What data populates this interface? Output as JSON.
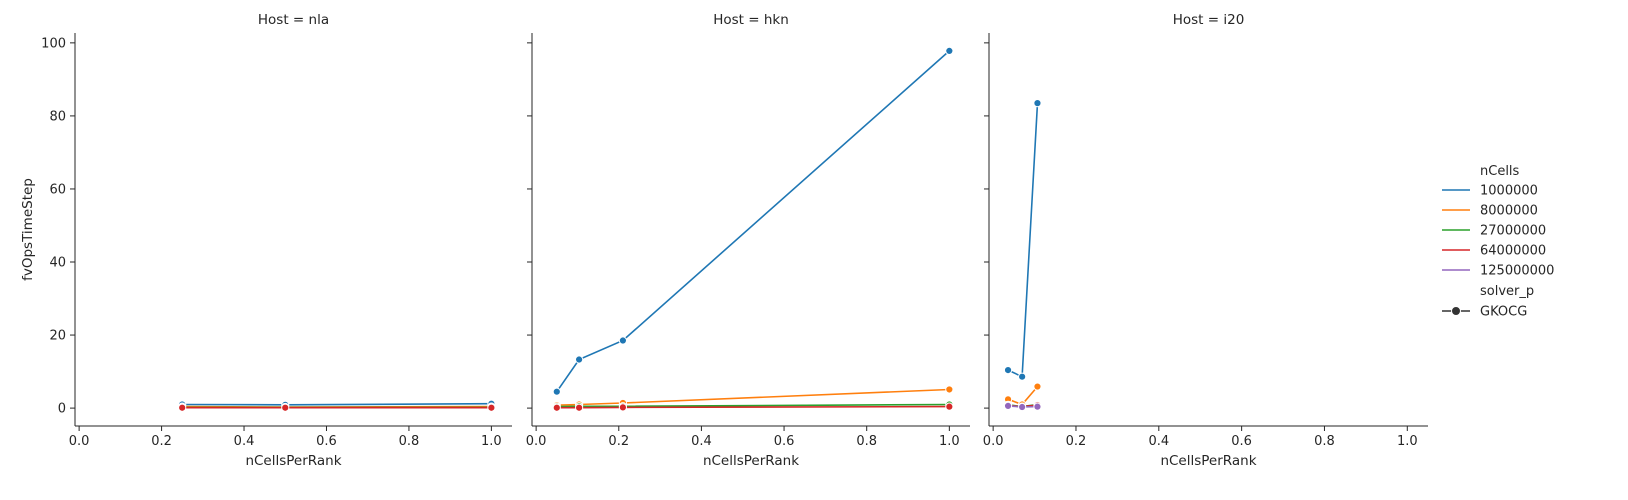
{
  "chart_data": {
    "type": "line",
    "xlabel": "nCellsPerRank",
    "ylabel": "fvOpsTimeStep",
    "xlim": [
      -0.01,
      1.05
    ],
    "ylim": [
      -4.9,
      102.7
    ],
    "xticks": [
      "0.0",
      "0.2",
      "0.4",
      "0.6",
      "0.8",
      "1.0"
    ],
    "yticks": [
      "0",
      "20",
      "40",
      "60",
      "80",
      "100"
    ],
    "grid": false,
    "legend_position": "right",
    "legend": {
      "hue_title": "nCells",
      "style_title": "solver_p",
      "style_entry": "GKOCG",
      "colors": {
        "1000000": "#1f77b4",
        "8000000": "#ff7f0e",
        "27000000": "#2ca02c",
        "64000000": "#d62728",
        "125000000": "#9467bd"
      },
      "hue_entries": [
        "1000000",
        "8000000",
        "27000000",
        "64000000",
        "125000000"
      ]
    },
    "panels": [
      {
        "title": "Host = nla",
        "series": [
          {
            "name": "1000000",
            "x": [
              0.25,
              0.5,
              1.0
            ],
            "y": [
              1.0,
              0.9,
              1.2
            ]
          },
          {
            "name": "8000000",
            "x": [
              0.25,
              0.5,
              1.0
            ],
            "y": [
              0.4,
              0.3,
              0.4
            ]
          },
          {
            "name": "27000000",
            "x": [
              0.25,
              0.5,
              1.0
            ],
            "y": [
              0.2,
              0.2,
              0.2
            ]
          },
          {
            "name": "64000000",
            "x": [
              0.25,
              0.5,
              1.0
            ],
            "y": [
              0.1,
              0.1,
              0.1
            ]
          }
        ]
      },
      {
        "title": "Host = hkn",
        "series": [
          {
            "name": "1000000",
            "x": [
              0.05,
              0.104,
              0.21,
              1.0
            ],
            "y": [
              4.5,
              13.3,
              18.5,
              97.8
            ]
          },
          {
            "name": "8000000",
            "x": [
              0.05,
              0.104,
              0.21,
              1.0
            ],
            "y": [
              0.8,
              1.0,
              1.4,
              5.1
            ]
          },
          {
            "name": "27000000",
            "x": [
              0.05,
              0.104,
              0.21,
              1.0
            ],
            "y": [
              0.4,
              0.5,
              0.5,
              1.0
            ]
          },
          {
            "name": "64000000",
            "x": [
              0.05,
              0.104,
              0.21,
              1.0
            ],
            "y": [
              0.1,
              0.1,
              0.2,
              0.4
            ]
          }
        ]
      },
      {
        "title": "Host = i20",
        "series": [
          {
            "name": "1000000",
            "x": [
              0.036,
              0.07,
              0.107
            ],
            "y": [
              10.4,
              8.6,
              83.5
            ]
          },
          {
            "name": "8000000",
            "x": [
              0.036,
              0.07,
              0.107
            ],
            "y": [
              2.4,
              1.0,
              5.9
            ]
          },
          {
            "name": "27000000",
            "x": [
              0.036,
              0.07,
              0.107
            ],
            "y": [
              0.9,
              0.4,
              1.0
            ]
          },
          {
            "name": "64000000",
            "x": [
              0.036,
              0.07,
              0.107
            ],
            "y": [
              0.7,
              0.4,
              0.8
            ]
          },
          {
            "name": "125000000",
            "x": [
              0.036,
              0.07,
              0.107
            ],
            "y": [
              0.6,
              0.3,
              0.4
            ]
          }
        ]
      }
    ]
  }
}
